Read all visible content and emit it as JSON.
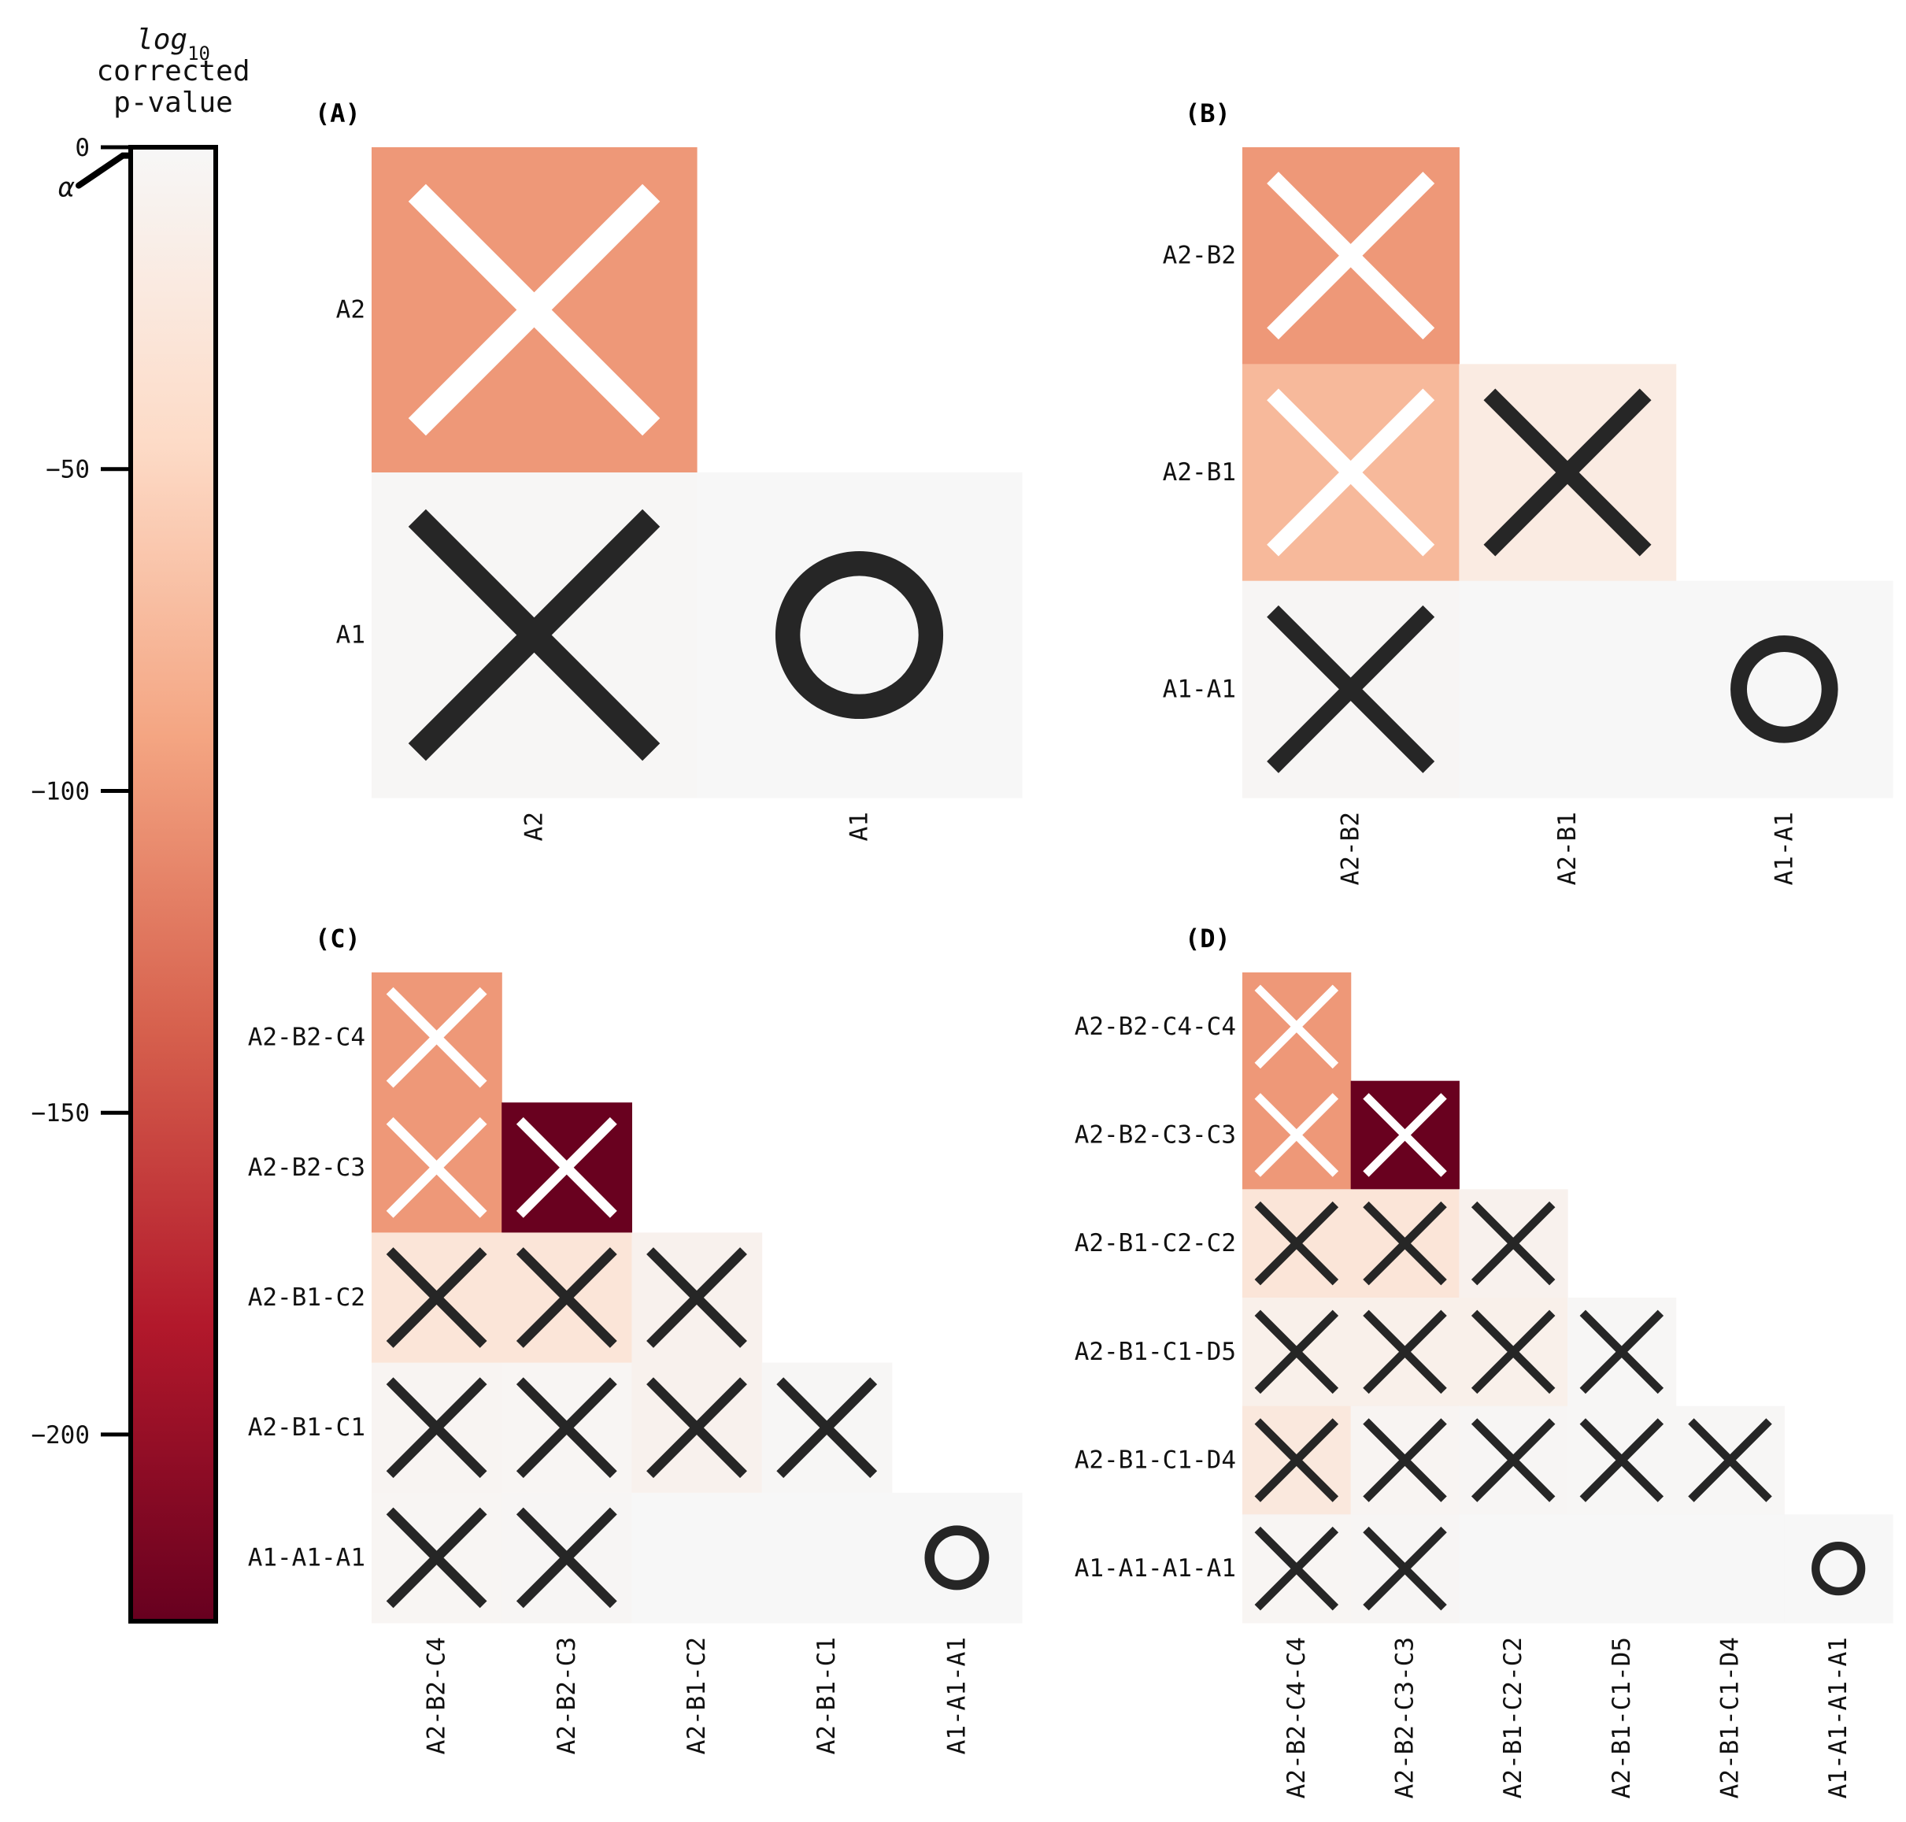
{
  "colorbar": {
    "title_line1": "log",
    "title_sub": "10",
    "title_line2": "corrected",
    "title_line3": "p-value",
    "ticks": [
      0,
      -50,
      -100,
      -150,
      -200
    ],
    "tick_labels": [
      "0",
      "−50",
      "−100",
      "−150",
      "−200"
    ],
    "alpha_label": "α",
    "alpha_value": -1.3,
    "range": [
      -229,
      0
    ],
    "colormap": [
      "#f7f7f7",
      "#fddbc7",
      "#f4a582",
      "#d6604d",
      "#b2182b",
      "#67001f"
    ]
  },
  "chart_data": [
    {
      "type": "heatmap",
      "panel": "(A)",
      "labels": [
        "A2",
        "A1"
      ],
      "values": [
        [
          -100,
          null
        ],
        [
          -2,
          0
        ]
      ],
      "marks": [
        [
          "x",
          ""
        ],
        [
          "x",
          "o"
        ]
      ]
    },
    {
      "type": "heatmap",
      "panel": "(B)",
      "labels": [
        "A2-B2",
        "A2-B1",
        "A1-A1"
      ],
      "values": [
        [
          -100,
          null,
          null
        ],
        [
          -75,
          -20,
          null
        ],
        [
          -3,
          0,
          0
        ]
      ],
      "marks": [
        [
          "x",
          "",
          ""
        ],
        [
          "x",
          "x",
          ""
        ],
        [
          "x",
          "",
          "o"
        ]
      ]
    },
    {
      "type": "heatmap",
      "panel": "(C)",
      "labels": [
        "A2-B2-C4",
        "A2-B2-C3",
        "A2-B1-C2",
        "A2-B1-C1",
        "A1-A1-A1"
      ],
      "values": [
        [
          -100,
          null,
          null,
          null,
          null
        ],
        [
          -100,
          -228,
          null,
          null,
          null
        ],
        [
          -30,
          -30,
          -10,
          null,
          null
        ],
        [
          -5,
          -4,
          -10,
          -2,
          null
        ],
        [
          -4,
          -3,
          0,
          0,
          0
        ]
      ],
      "marks": [
        [
          "x",
          "",
          "",
          "",
          ""
        ],
        [
          "x",
          "x",
          "",
          "",
          ""
        ],
        [
          "x",
          "x",
          "x",
          "",
          ""
        ],
        [
          "x",
          "x",
          "x",
          "x",
          ""
        ],
        [
          "x",
          "x",
          "",
          "",
          "o"
        ]
      ]
    },
    {
      "type": "heatmap",
      "panel": "(D)",
      "labels": [
        "A2-B2-C4-C4",
        "A2-B2-C3-C3",
        "A2-B1-C2-C2",
        "A2-B1-C1-D5",
        "A2-B1-C1-D4",
        "A1-A1-A1-A1"
      ],
      "values": [
        [
          -100,
          null,
          null,
          null,
          null,
          null
        ],
        [
          -100,
          -228,
          null,
          null,
          null,
          null
        ],
        [
          -30,
          -30,
          -10,
          null,
          null,
          null
        ],
        [
          -12,
          -12,
          -12,
          -2,
          null,
          null
        ],
        [
          -25,
          -5,
          -3,
          -2,
          -2,
          null
        ],
        [
          -4,
          -3,
          0,
          0,
          0,
          0
        ]
      ],
      "marks": [
        [
          "x",
          "",
          "",
          "",
          "",
          ""
        ],
        [
          "x",
          "x",
          "",
          "",
          "",
          ""
        ],
        [
          "x",
          "x",
          "x",
          "",
          "",
          ""
        ],
        [
          "x",
          "x",
          "x",
          "x",
          "",
          ""
        ],
        [
          "x",
          "x",
          "x",
          "x",
          "x",
          ""
        ],
        [
          "x",
          "x",
          "",
          "",
          "",
          "o"
        ]
      ]
    }
  ]
}
